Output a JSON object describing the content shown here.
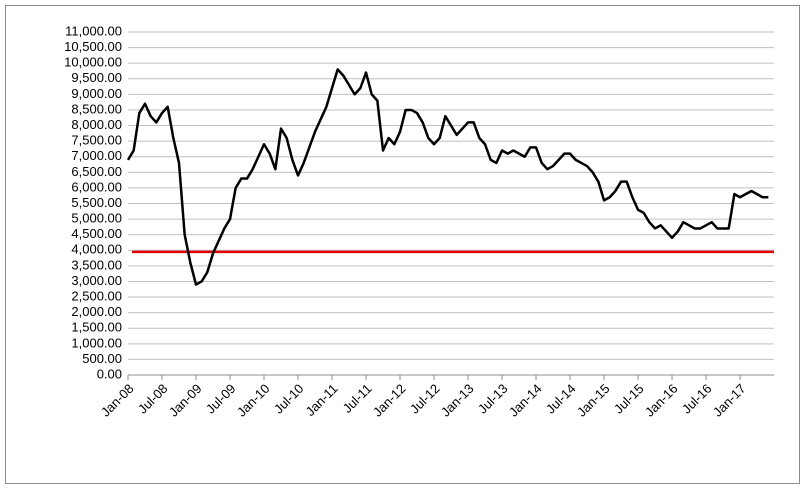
{
  "chart_data": {
    "type": "line",
    "categories": [
      "Jan-08",
      null,
      null,
      null,
      null,
      null,
      "Jul-08",
      null,
      null,
      null,
      null,
      null,
      "Jan-09",
      null,
      null,
      null,
      null,
      null,
      "Jul-09",
      null,
      null,
      null,
      null,
      null,
      "Jan-10",
      null,
      null,
      null,
      null,
      null,
      "Jul-10",
      null,
      null,
      null,
      null,
      null,
      "Jan-11",
      null,
      null,
      null,
      null,
      null,
      "Jul-11",
      null,
      null,
      null,
      null,
      null,
      "Jan-12",
      null,
      null,
      null,
      null,
      null,
      "Jul-12",
      null,
      null,
      null,
      null,
      null,
      "Jan-13",
      null,
      null,
      null,
      null,
      null,
      "Jul-13",
      null,
      null,
      null,
      null,
      null,
      "Jan-14",
      null,
      null,
      null,
      null,
      null,
      "Jul-14",
      null,
      null,
      null,
      null,
      null,
      "Jan-15",
      null,
      null,
      null,
      null,
      null,
      "Jul-15",
      null,
      null,
      null,
      null,
      null,
      "Jan-16",
      null,
      null,
      null,
      null,
      null,
      "Jul-16",
      null,
      null,
      null,
      null,
      null,
      "Jan-17",
      null,
      null,
      null,
      null,
      null
    ],
    "series": [
      {
        "color": "#000000",
        "values": [
          6900,
          7200,
          8400,
          8700,
          8300,
          8100,
          8400,
          8600,
          7600,
          6800,
          4500,
          3600,
          2900,
          3000,
          3300,
          3900,
          4300,
          4700,
          5000,
          6000,
          6300,
          6300,
          6600,
          7000,
          7400,
          7100,
          6600,
          7900,
          7600,
          6900,
          6400,
          6800,
          7300,
          7800,
          8200,
          8600,
          9200,
          9800,
          9600,
          9300,
          9000,
          9200,
          9700,
          9000,
          8800,
          7200,
          7600,
          7400,
          7800,
          8500,
          8500,
          8400,
          8100,
          7600,
          7400,
          7600,
          8300,
          8000,
          7700,
          7900,
          8100,
          8100,
          7600,
          7400,
          6900,
          6800,
          7200,
          7100,
          7200,
          7100,
          7000,
          7300,
          7300,
          6800,
          6600,
          6700,
          6900,
          7100,
          7100,
          6900,
          6800,
          6700,
          6500,
          6200,
          5600,
          5700,
          5900,
          6200,
          6200,
          5700,
          5300,
          5200,
          4900,
          4700,
          4800,
          4600,
          4400,
          4600,
          4900,
          4800,
          4700,
          4700,
          4800,
          4900,
          4700,
          4700,
          4700,
          5800,
          5700,
          5800,
          5900,
          5800,
          5700,
          5700
        ]
      }
    ],
    "reference_line": {
      "value": 3950,
      "color": "#e00000"
    },
    "ylim": [
      0,
      11000
    ],
    "yticks": [
      {
        "value": 0,
        "label": "0.00"
      },
      {
        "value": 500,
        "label": "500.00"
      },
      {
        "value": 1000,
        "label": "1,000.00"
      },
      {
        "value": 1500,
        "label": "1,500.00"
      },
      {
        "value": 2000,
        "label": "2,000.00"
      },
      {
        "value": 2500,
        "label": "2,500.00"
      },
      {
        "value": 3000,
        "label": "3,000.00"
      },
      {
        "value": 3500,
        "label": "3,500.00"
      },
      {
        "value": 4000,
        "label": "4,000.00"
      },
      {
        "value": 4500,
        "label": "4,500.00"
      },
      {
        "value": 5000,
        "label": "5,000.00"
      },
      {
        "value": 5500,
        "label": "5,500.00"
      },
      {
        "value": 6000,
        "label": "6,000.00"
      },
      {
        "value": 6500,
        "label": "6,500.00"
      },
      {
        "value": 7000,
        "label": "7,000.00"
      },
      {
        "value": 7500,
        "label": "7,500.00"
      },
      {
        "value": 8000,
        "label": "8,000.00"
      },
      {
        "value": 8500,
        "label": "8,500.00"
      },
      {
        "value": 9000,
        "label": "9,000.00"
      },
      {
        "value": 9500,
        "label": "9,500.00"
      },
      {
        "value": 10000,
        "label": "10,000.00"
      },
      {
        "value": 10500,
        "label": "10,500.00"
      },
      {
        "value": 11000,
        "label": "11,000.00"
      }
    ],
    "grid": true
  }
}
